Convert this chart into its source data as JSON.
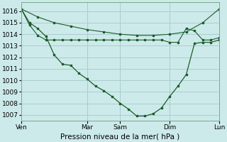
{
  "bg_color": "#cdeaea",
  "grid_color": "#aacece",
  "line_color": "#1a5c2a",
  "xlabel": "Pression niveau de la mer( hPa )",
  "xlabel_fontsize": 7.5,
  "tick_fontsize": 6.5,
  "ylim": [
    1006.5,
    1016.8
  ],
  "yticks": [
    1007,
    1008,
    1009,
    1010,
    1011,
    1012,
    1013,
    1014,
    1015,
    1016
  ],
  "day_labels": [
    "Ven",
    "Mar",
    "Sam",
    "Dim",
    "Lun"
  ],
  "day_positions": [
    0.0,
    8.0,
    12.0,
    18.0,
    24.0
  ],
  "xlim": [
    0,
    24
  ],
  "line1_x": [
    0,
    2,
    4,
    6,
    8,
    10,
    12,
    14,
    16,
    18,
    20,
    22,
    24
  ],
  "line1_y": [
    1016.2,
    1015.5,
    1015.0,
    1014.7,
    1014.4,
    1014.2,
    1014.0,
    1013.9,
    1013.9,
    1014.0,
    1014.2,
    1015.0,
    1016.2
  ],
  "line2_x": [
    0,
    1,
    2,
    3,
    4,
    5,
    6,
    7,
    8,
    9,
    10,
    11,
    12,
    13,
    14,
    15,
    16,
    17,
    18,
    19,
    20,
    21,
    22,
    23,
    24
  ],
  "line2_y": [
    1016.2,
    1015.0,
    1014.5,
    1013.8,
    1012.2,
    1011.4,
    1011.3,
    1010.6,
    1010.1,
    1009.5,
    1009.1,
    1008.6,
    1008.0,
    1007.5,
    1006.9,
    1006.9,
    1007.1,
    1007.6,
    1008.6,
    1009.5,
    1010.5,
    1013.2,
    1013.3,
    1013.3,
    1013.5
  ],
  "line3_x": [
    0,
    1,
    2,
    3,
    4,
    5,
    6,
    7,
    8,
    9,
    10,
    11,
    12,
    13,
    14,
    15,
    16,
    17,
    18,
    19,
    20,
    21,
    22,
    23,
    24
  ],
  "line3_y": [
    1016.2,
    1014.8,
    1013.9,
    1013.5,
    1013.5,
    1013.5,
    1013.5,
    1013.5,
    1013.5,
    1013.5,
    1013.5,
    1013.5,
    1013.5,
    1013.5,
    1013.5,
    1013.5,
    1013.5,
    1013.5,
    1013.3,
    1013.3,
    1014.5,
    1014.3,
    1013.5,
    1013.5,
    1013.7
  ]
}
